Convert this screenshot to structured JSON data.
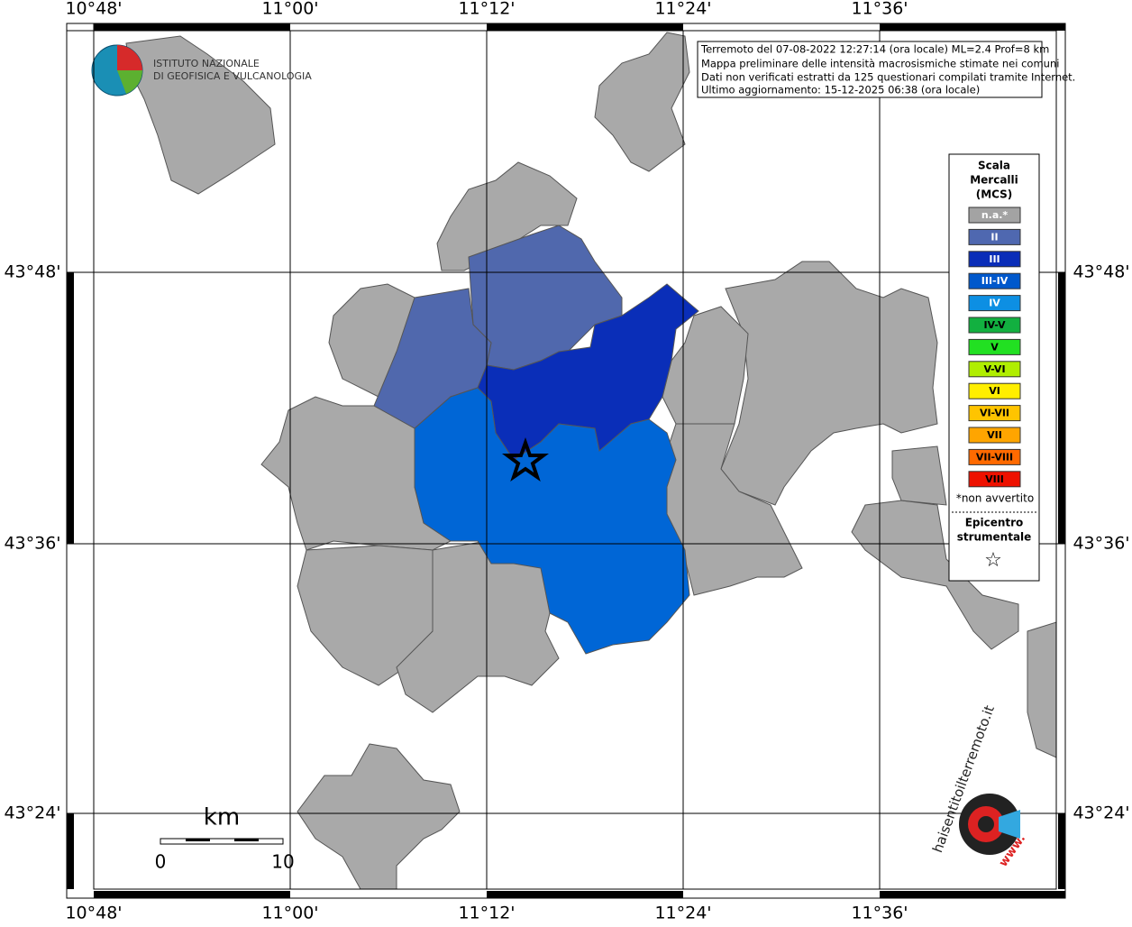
{
  "coordinates": {
    "longitudes": [
      "10°48'",
      "11°00'",
      "11°12'",
      "11°24'",
      "11°36'"
    ],
    "latitudes": [
      "43°48'",
      "43°36'",
      "43°24'"
    ]
  },
  "info": [
    "Terremoto del 07-08-2022 12:27:14 (ora locale) ML=2.4 Prof=8 km",
    "Mappa preliminare delle intensità macrosismiche stimate nei comuni",
    "Dati non verificati estratti da 125 questionari compilati tramite Internet.",
    "Ultimo aggiornamento: 15-12-2025 06:38 (ora locale)"
  ],
  "logo": {
    "line1": "ISTITUTO NAZIONALE",
    "line2": "DI GEOFISICA E VULCANOLOGIA"
  },
  "legend": {
    "title": [
      "Scala",
      "Mercalli",
      "(MCS)"
    ],
    "items": [
      {
        "label": "n.a.*",
        "color": "#a3a3a3"
      },
      {
        "label": "II",
        "color": "#4f68b0"
      },
      {
        "label": "III",
        "color": "#0a2db8"
      },
      {
        "label": "III-IV",
        "color": "#0058cc"
      },
      {
        "label": "IV",
        "color": "#0d8fe3"
      },
      {
        "label": "IV-V",
        "color": "#12b040"
      },
      {
        "label": "V",
        "color": "#22e022"
      },
      {
        "label": "V-VI",
        "color": "#b0ee00"
      },
      {
        "label": "VI",
        "color": "#ffee00"
      },
      {
        "label": "VI-VII",
        "color": "#ffc400"
      },
      {
        "label": "VII",
        "color": "#ffa500"
      },
      {
        "label": "VII-VIII",
        "color": "#ff6a00"
      },
      {
        "label": "VIII",
        "color": "#ee1100"
      }
    ],
    "note": "*non avvertito",
    "epicentre": [
      "Epicentro",
      "strumentale"
    ],
    "star": "☆"
  },
  "scale": {
    "unit": "km",
    "start": "0",
    "end": "10"
  },
  "badge": {
    "text": "haisentitoilterremoto.it",
    "www": "www."
  }
}
